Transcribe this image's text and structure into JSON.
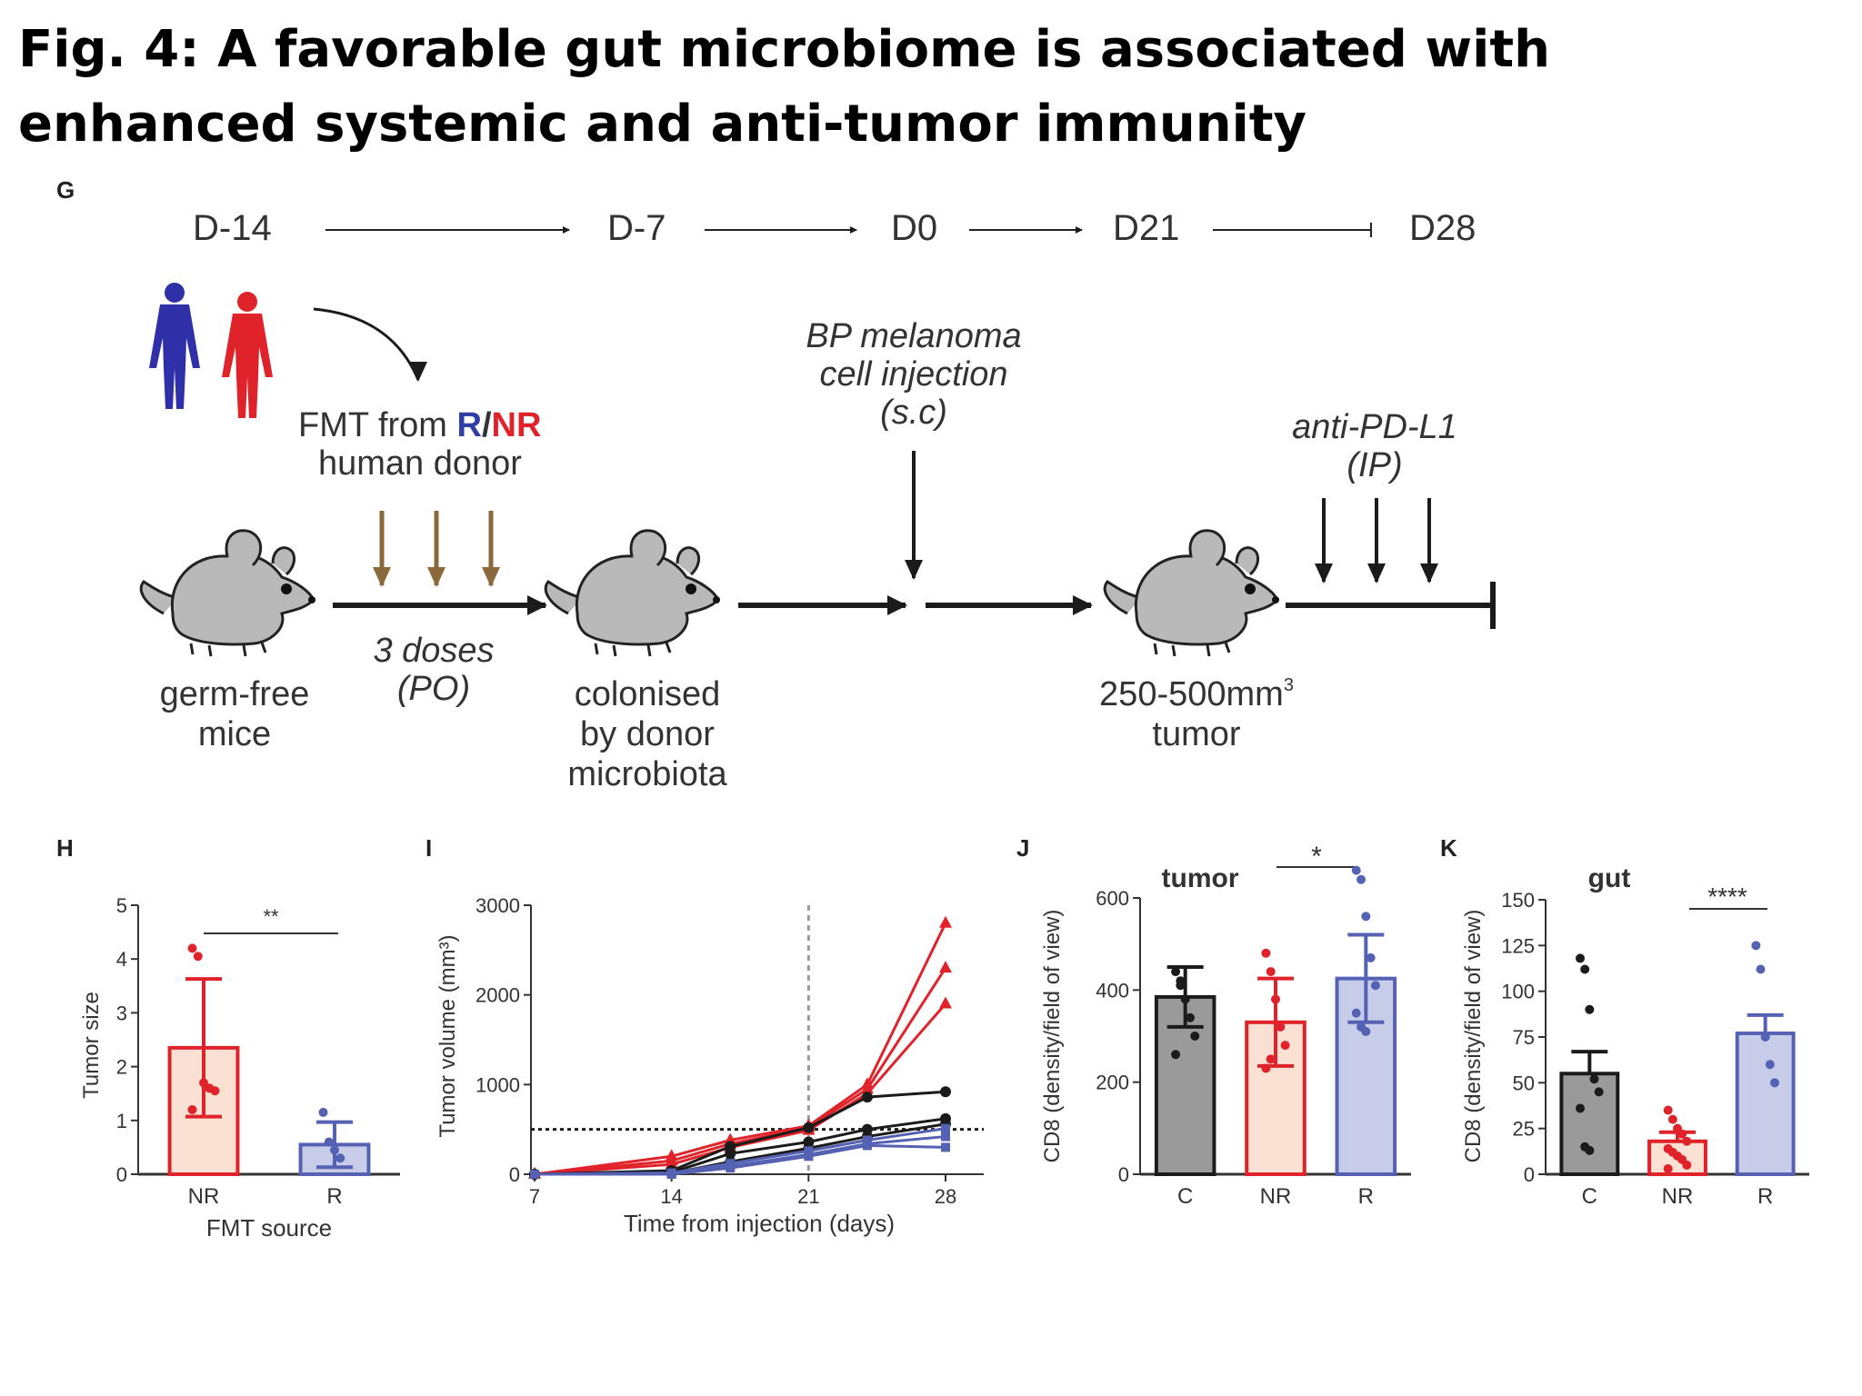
{
  "title": "Fig. 4: A favorable gut microbiome is associated with enhanced systemic and anti-tumor immunity",
  "colors": {
    "nr_red": "#e0232b",
    "r_blue": "#5562b4",
    "dark": "#1b1b1b",
    "brown": "#8a6a3c",
    "nr_fill": "#fbe1d4",
    "r_fill": "#c7cde9",
    "c_fill": "#9a9a9a",
    "mouse_fill": "#b9b9b9"
  },
  "panel_g": {
    "label": "G",
    "timeline": [
      "D-14",
      "D-7",
      "D0",
      "D21",
      "D28"
    ],
    "fmt_text": "FMT from ",
    "fmt_r": "R",
    "fmt_slash": "/",
    "fmt_nr": "NR",
    "fmt_line2": "human donor",
    "doses_1": "3 doses",
    "doses_2": "(PO)",
    "bp_1": "BP melanoma",
    "bp_2": "cell injection",
    "bp_3": "(s.c)",
    "pdl1_1": "anti-PD-L1",
    "pdl1_2": "(IP)",
    "germ_1": "germ-free",
    "germ_2": "mice",
    "col_1": "colonised",
    "col_2": "by donor",
    "col_3": "microbiota",
    "tumor_1": "250-500mm",
    "tumor_sup": "3",
    "tumor_2": "tumor",
    "icons": [
      "human-figure-blue-icon",
      "human-figure-red-icon",
      "mouse-icon",
      "arrow-icon"
    ]
  },
  "panel_h": {
    "label": "H",
    "ylabel": "Tumor size",
    "xlabel": "FMT source",
    "sig": "**",
    "yticks": [
      "0",
      "1",
      "2",
      "3",
      "4",
      "5"
    ]
  },
  "panel_i": {
    "label": "I",
    "ylabel": "Tumor volume (mm³)",
    "xlabel": "Time from injection (days)",
    "yticks": [
      "0",
      "1000",
      "2000",
      "3000"
    ],
    "xticks": [
      "7",
      "14",
      "21",
      "28"
    ]
  },
  "panel_j": {
    "label": "J",
    "title": "tumor",
    "ylabel": "CD8 (density/field of view)",
    "sig": "*",
    "yticks": [
      "0",
      "200",
      "400",
      "600"
    ]
  },
  "panel_k": {
    "label": "K",
    "title": "gut",
    "ylabel": "CD8 (density/field of view)",
    "sig": "****",
    "yticks": [
      "0",
      "25",
      "50",
      "75",
      "100",
      "125",
      "150"
    ]
  },
  "chart_data": [
    {
      "type": "bar",
      "panel": "H",
      "categories": [
        "NR",
        "R"
      ],
      "values": [
        2.35,
        0.55
      ],
      "errors": [
        1.28,
        0.42
      ],
      "points": [
        [
          4.2,
          4.05,
          1.7,
          1.6,
          1.55,
          1.2
        ],
        [
          1.15,
          0.6,
          0.45,
          0.3
        ]
      ],
      "ylim": [
        0,
        5
      ],
      "xlabel": "FMT source",
      "ylabel": "Tumor size",
      "annotation": "**"
    },
    {
      "type": "line",
      "panel": "I",
      "x": [
        7,
        14,
        17,
        21,
        24,
        28
      ],
      "series": [
        {
          "group": "NR",
          "values": [
            0,
            200,
            380,
            540,
            1000,
            2800
          ]
        },
        {
          "group": "NR",
          "values": [
            0,
            150,
            340,
            520,
            950,
            2300
          ]
        },
        {
          "group": "NR",
          "values": [
            0,
            110,
            300,
            490,
            900,
            1900
          ]
        },
        {
          "group": "C",
          "values": [
            0,
            40,
            310,
            520,
            860,
            920
          ]
        },
        {
          "group": "C",
          "values": [
            0,
            20,
            230,
            360,
            500,
            620
          ]
        },
        {
          "group": "C",
          "values": [
            0,
            10,
            140,
            290,
            420,
            560
          ]
        },
        {
          "group": "R",
          "values": [
            0,
            15,
            120,
            260,
            380,
            510
          ]
        },
        {
          "group": "R",
          "values": [
            0,
            5,
            90,
            220,
            340,
            420
          ]
        },
        {
          "group": "R",
          "values": [
            0,
            0,
            70,
            200,
            320,
            300
          ]
        }
      ],
      "threshold": 500,
      "vline_x": 21,
      "xlim": [
        7,
        28
      ],
      "ylim": [
        0,
        3000
      ],
      "xlabel": "Time from injection (days)",
      "ylabel": "Tumor volume (mm³)"
    },
    {
      "type": "bar",
      "panel": "J",
      "title": "tumor",
      "categories": [
        "C",
        "NR",
        "R"
      ],
      "values": [
        385,
        330,
        425
      ],
      "errors": [
        65,
        95,
        95
      ],
      "points": [
        [
          440,
          410,
          380,
          340,
          300,
          260,
          420
        ],
        [
          480,
          440,
          380,
          320,
          280,
          230,
          250
        ],
        [
          660,
          640,
          560,
          470,
          410,
          350,
          320,
          310
        ]
      ],
      "ylim": [
        0,
        600
      ],
      "ylabel": "CD8 (density/field of view)",
      "annotation": "*"
    },
    {
      "type": "bar",
      "panel": "K",
      "title": "gut",
      "categories": [
        "C",
        "NR",
        "R"
      ],
      "values": [
        55,
        18,
        77
      ],
      "errors": [
        12,
        5,
        10
      ],
      "points": [
        [
          118,
          112,
          90,
          52,
          45,
          36,
          15,
          13
        ],
        [
          35,
          30,
          25,
          22,
          18,
          14,
          12,
          10,
          8,
          5,
          3
        ],
        [
          125,
          112,
          75,
          60,
          50
        ]
      ],
      "ylim": [
        0,
        150
      ],
      "ylabel": "CD8 (density/field of view)",
      "annotation": "****"
    }
  ]
}
